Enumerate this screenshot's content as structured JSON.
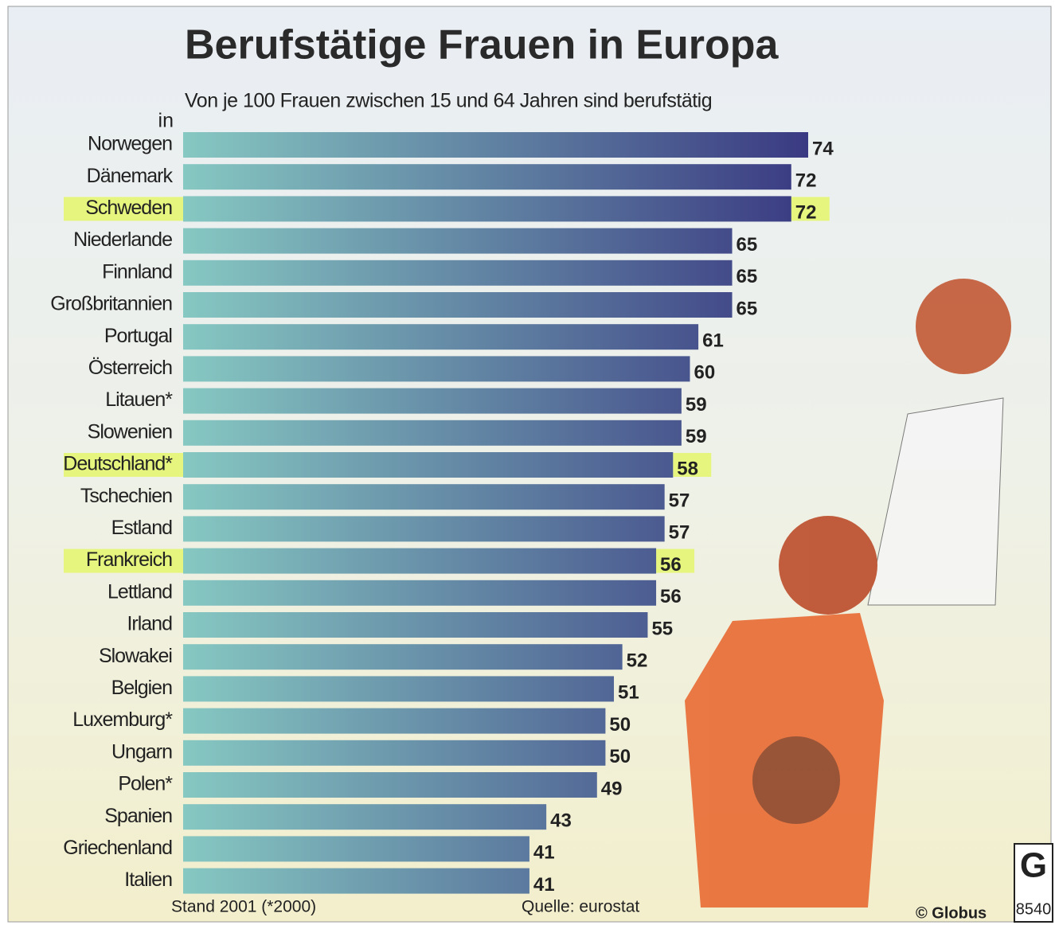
{
  "chart_data": {
    "type": "bar",
    "orientation": "horizontal",
    "title": "Berufstätige Frauen in Europa",
    "subtitle": "Von je 100 Frauen zwischen 15 und 64 Jahren sind berufstätig",
    "category_label": "in",
    "categories": [
      "Norwegen",
      "Dänemark",
      "Schweden",
      "Niederlande",
      "Finnland",
      "Großbritannien",
      "Portugal",
      "Österreich",
      "Litauen*",
      "Slowenien",
      "Deutschland*",
      "Tschechien",
      "Estland",
      "Frankreich",
      "Lettland",
      "Irland",
      "Slowakei",
      "Belgien",
      "Luxemburg*",
      "Ungarn",
      "Polen*",
      "Spanien",
      "Griechenland",
      "Italien"
    ],
    "values": [
      74,
      72,
      72,
      65,
      65,
      65,
      61,
      60,
      59,
      59,
      58,
      57,
      57,
      56,
      56,
      55,
      52,
      51,
      50,
      50,
      49,
      43,
      41,
      41
    ],
    "gradient": [
      "#86c8c2",
      "#3a3a82"
    ],
    "highlighted": [
      2,
      10,
      13
    ],
    "highlight_color": "#e6f57e",
    "note": "Stand 2001 (*2000)",
    "source": "Quelle: eurostat",
    "credit": "© Globus",
    "logo": "G",
    "logo_number": "8540"
  }
}
